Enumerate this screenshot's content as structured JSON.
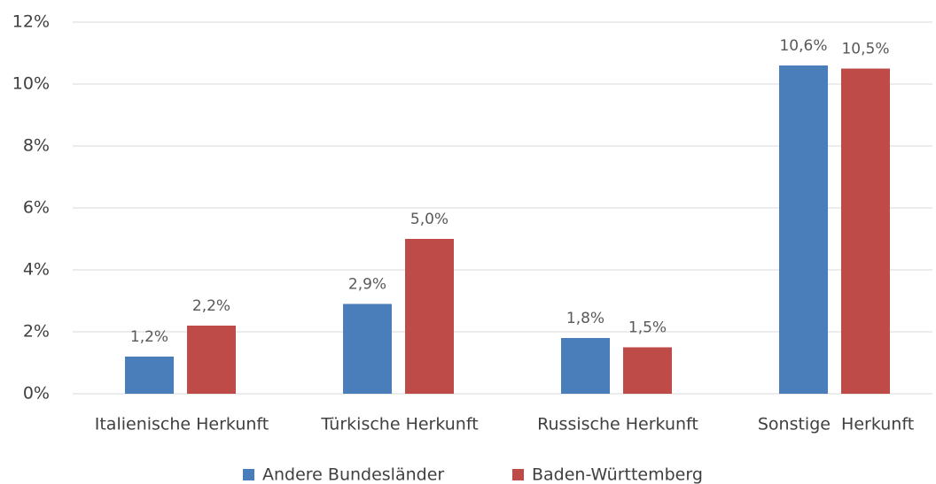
{
  "chart_data": {
    "type": "bar",
    "categories": [
      "Italienische Herkunft",
      "Türkische Herkunft",
      "Russische Herkunft",
      "Sonstige  Herkunft"
    ],
    "series": [
      {
        "name": "Andere Bundesländer",
        "color": "#4a7ebb",
        "values": [
          1.2,
          2.9,
          1.8,
          10.6
        ],
        "value_labels": [
          "1,2%",
          "2,9%",
          "1,8%",
          "10,6%"
        ]
      },
      {
        "name": "Baden-Württemberg",
        "color": "#be4b48",
        "values": [
          2.2,
          5.0,
          1.5,
          10.5
        ],
        "value_labels": [
          "2,2%",
          "5,0%",
          "1,5%",
          "10,5%"
        ]
      }
    ],
    "ylim": [
      0,
      12
    ],
    "yticks": [
      {
        "value": 0,
        "label": "0%"
      },
      {
        "value": 2,
        "label": "2%"
      },
      {
        "value": 4,
        "label": "4%"
      },
      {
        "value": 6,
        "label": "6%"
      },
      {
        "value": 8,
        "label": "8%"
      },
      {
        "value": 10,
        "label": "10%"
      },
      {
        "value": 12,
        "label": "12%"
      }
    ],
    "grid": true,
    "legend": "bottom"
  }
}
